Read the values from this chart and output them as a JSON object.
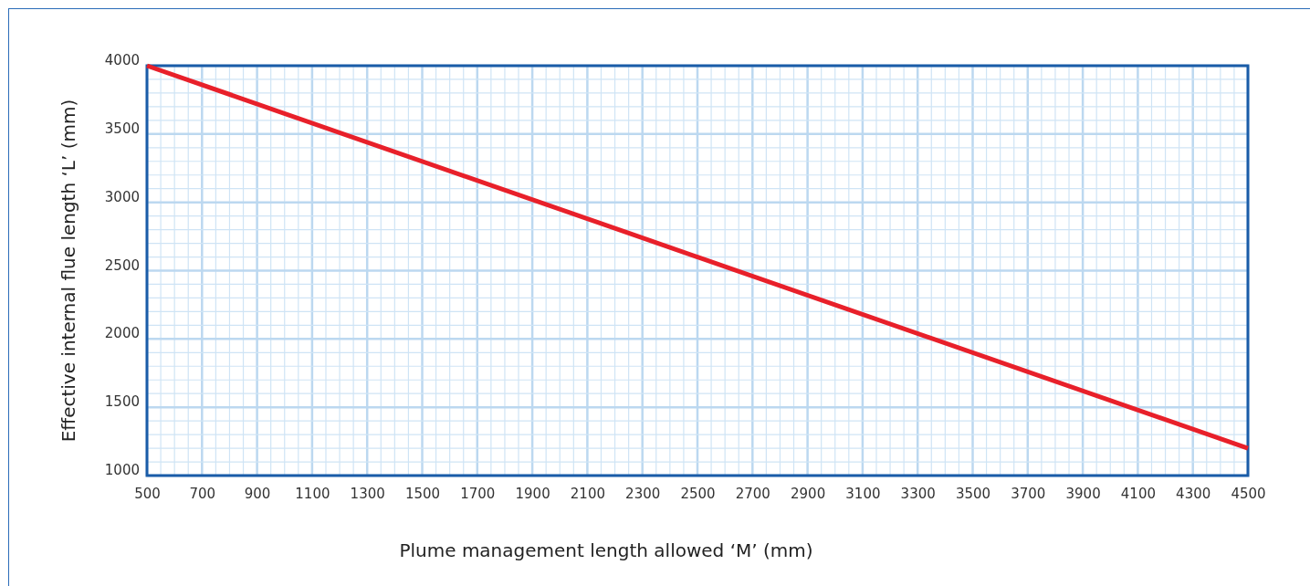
{
  "chart_data": {
    "type": "line",
    "xlabel": "Plume management length allowed ‘M’ (mm)",
    "ylabel": "Effective internal flue length ‘L’ (mm)",
    "x": [
      500,
      4500
    ],
    "series": [
      {
        "color": "#e8202a",
        "values": [
          4000,
          1200
        ]
      }
    ],
    "xlim": [
      500,
      4500
    ],
    "ylim": [
      1000,
      4000
    ],
    "xticks": [
      500,
      {
        "value": 550,
        "label": null
      },
      {
        "value": 600,
        "label": null
      },
      {
        "value": 650,
        "label": null
      },
      700,
      {
        "value": 750,
        "label": null
      },
      {
        "value": 800,
        "label": null
      },
      {
        "value": 850,
        "label": null
      },
      900,
      {
        "value": 950,
        "label": null
      },
      {
        "value": 1000,
        "label": null
      },
      {
        "value": 1050,
        "label": null
      },
      1100,
      {
        "value": 1150,
        "label": null
      },
      {
        "value": 1200,
        "label": null
      },
      {
        "value": 1250,
        "label": null
      },
      1300,
      {
        "value": 1350,
        "label": null
      },
      {
        "value": 1400,
        "label": null
      },
      {
        "value": 1450,
        "label": null
      },
      1500,
      {
        "value": 1550,
        "label": null
      },
      {
        "value": 1600,
        "label": null
      },
      {
        "value": 1650,
        "label": null
      },
      1700,
      {
        "value": 1750,
        "label": null
      },
      {
        "value": 1800,
        "label": null
      },
      {
        "value": 1850,
        "label": null
      },
      1900,
      {
        "value": 1950,
        "label": null
      },
      {
        "value": 2000,
        "label": null
      },
      {
        "value": 2050,
        "label": null
      },
      2100,
      {
        "value": 2150,
        "label": null
      },
      {
        "value": 2200,
        "label": null
      },
      {
        "value": 2250,
        "label": null
      },
      2300,
      {
        "value": 2350,
        "label": null
      },
      {
        "value": 2400,
        "label": null
      },
      {
        "value": 2450,
        "label": null
      },
      2500,
      {
        "value": 2550,
        "label": null
      },
      {
        "value": 2600,
        "label": null
      },
      {
        "value": 2650,
        "label": null
      },
      2700,
      {
        "value": 2750,
        "label": null
      },
      {
        "value": 2800,
        "label": null
      },
      {
        "value": 2850,
        "label": null
      },
      2900,
      {
        "value": 2950,
        "label": null
      },
      {
        "value": 3000,
        "label": null
      },
      {
        "value": 3050,
        "label": null
      },
      3100,
      {
        "value": 3150,
        "label": null
      },
      {
        "value": 3200,
        "label": null
      },
      {
        "value": 3250,
        "label": null
      },
      3300,
      {
        "value": 3350,
        "label": null
      },
      {
        "value": 3400,
        "label": null
      },
      {
        "value": 3450,
        "label": null
      },
      3500,
      {
        "value": 3550,
        "label": null
      },
      {
        "value": 3600,
        "label": null
      },
      {
        "value": 3650,
        "label": null
      },
      3700,
      {
        "value": 3750,
        "label": null
      },
      {
        "value": 3800,
        "label": null
      },
      {
        "value": 3850,
        "label": null
      },
      3900,
      {
        "value": 3950,
        "label": null
      },
      {
        "value": 4000,
        "label": null
      },
      {
        "value": 4050,
        "label": null
      },
      4100,
      {
        "value": 4150,
        "label": null
      },
      {
        "value": 4200,
        "label": null
      },
      {
        "value": 4250,
        "label": null
      },
      4300,
      {
        "value": 4350,
        "label": null
      },
      {
        "value": 4400,
        "label": null
      },
      {
        "value": 4450,
        "label": null
      },
      4500
    ],
    "yticks": [
      1000,
      {
        "value": 1100,
        "label": null
      },
      {
        "value": 1200,
        "label": null
      },
      {
        "value": 1300,
        "label": null
      },
      {
        "value": 1400,
        "label": null
      },
      1500,
      {
        "value": 1600,
        "label": null
      },
      {
        "value": 1700,
        "label": null
      },
      {
        "value": 1800,
        "label": null
      },
      {
        "value": 1900,
        "label": null
      },
      2000,
      {
        "value": 2100,
        "label": null
      },
      {
        "value": 2200,
        "label": null
      },
      {
        "value": 2300,
        "label": null
      },
      {
        "value": 2400,
        "label": null
      },
      2500,
      {
        "value": 2600,
        "label": null
      },
      {
        "value": 2700,
        "label": null
      },
      {
        "value": 2800,
        "label": null
      },
      {
        "value": 2900,
        "label": null
      },
      3000,
      {
        "value": 3100,
        "label": null
      },
      {
        "value": 3200,
        "label": null
      },
      {
        "value": 3300,
        "label": null
      },
      {
        "value": 3400,
        "label": null
      },
      3500,
      {
        "value": 3600,
        "label": null
      },
      {
        "value": 3700,
        "label": null
      },
      {
        "value": 3800,
        "label": null
      },
      {
        "value": 3900,
        "label": null
      },
      4000
    ],
    "grid": true,
    "marker": "none",
    "line_style": "solid"
  }
}
